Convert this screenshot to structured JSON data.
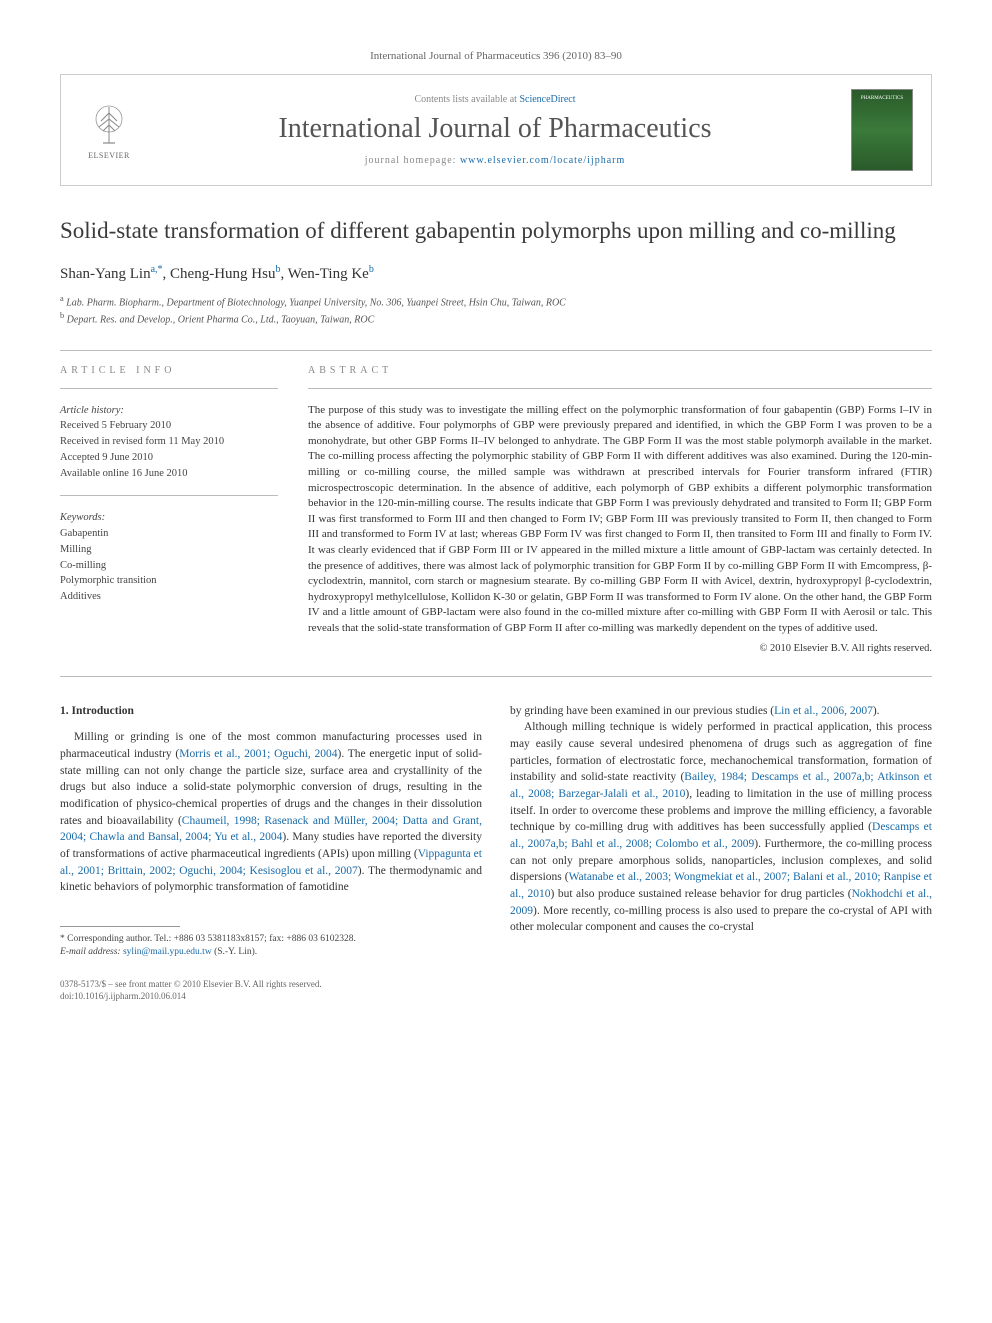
{
  "journal_ref": "International Journal of Pharmaceutics 396 (2010) 83–90",
  "header": {
    "contents_prefix": "Contents lists available at ",
    "contents_link": "ScienceDirect",
    "journal_title": "International Journal of Pharmaceutics",
    "homepage_prefix": "journal homepage: ",
    "homepage_link": "www.elsevier.com/locate/ijpharm",
    "elsevier_label": "ELSEVIER"
  },
  "title": "Solid-state transformation of different gabapentin polymorphs upon milling and co-milling",
  "authors_html": "Shan-Yang Lin<sup>a,*</sup>, Cheng-Hung Hsu<sup>b</sup>, Wen-Ting Ke<sup>b</sup>",
  "affiliations": [
    {
      "sup": "a",
      "text": "Lab. Pharm. Biopharm., Department of Biotechnology, Yuanpei University, No. 306, Yuanpei Street, Hsin Chu, Taiwan, ROC"
    },
    {
      "sup": "b",
      "text": "Depart. Res. and Develop., Orient Pharma Co., Ltd., Taoyuan, Taiwan, ROC"
    }
  ],
  "article_info": {
    "header": "ARTICLE INFO",
    "history_label": "Article history:",
    "history": [
      "Received 5 February 2010",
      "Received in revised form 11 May 2010",
      "Accepted 9 June 2010",
      "Available online 16 June 2010"
    ],
    "keywords_label": "Keywords:",
    "keywords": [
      "Gabapentin",
      "Milling",
      "Co-milling",
      "Polymorphic transition",
      "Additives"
    ]
  },
  "abstract": {
    "header": "ABSTRACT",
    "text": "The purpose of this study was to investigate the milling effect on the polymorphic transformation of four gabapentin (GBP) Forms I–IV in the absence of additive. Four polymorphs of GBP were previously prepared and identified, in which the GBP Form I was proven to be a monohydrate, but other GBP Forms II–IV belonged to anhydrate. The GBP Form II was the most stable polymorph available in the market. The co-milling process affecting the polymorphic stability of GBP Form II with different additives was also examined. During the 120-min-milling or co-milling course, the milled sample was withdrawn at prescribed intervals for Fourier transform infrared (FTIR) microspectroscopic determination. In the absence of additive, each polymorph of GBP exhibits a different polymorphic transformation behavior in the 120-min-milling course. The results indicate that GBP Form I was previously dehydrated and transited to Form II; GBP Form II was first transformed to Form III and then changed to Form IV; GBP Form III was previously transited to Form II, then changed to Form III and transformed to Form IV at last; whereas GBP Form IV was first changed to Form II, then transited to Form III and finally to Form IV. It was clearly evidenced that if GBP Form III or IV appeared in the milled mixture a little amount of GBP-lactam was certainly detected. In the presence of additives, there was almost lack of polymorphic transition for GBP Form II by co-milling GBP Form II with Emcompress, β-cyclodextrin, mannitol, corn starch or magnesium stearate. By co-milling GBP Form II with Avicel, dextrin, hydroxypropyl β-cyclodextrin, hydroxypropyl methylcellulose, Kollidon K-30 or gelatin, GBP Form II was transformed to Form IV alone. On the other hand, the GBP Form IV and a little amount of GBP-lactam were also found in the co-milled mixture after co-milling with GBP Form II with Aerosil or talc. This reveals that the solid-state transformation of GBP Form II after co-milling was markedly dependent on the types of additive used.",
    "copyright": "© 2010 Elsevier B.V. All rights reserved."
  },
  "body": {
    "section_number": "1.",
    "section_title": "Introduction",
    "left_para1_pre": "Milling or grinding is one of the most common manufacturing processes used in pharmaceutical industry (",
    "left_cite1": "Morris et al., 2001; Oguchi, 2004",
    "left_para1_mid": "). The energetic input of solid-state milling can not only change the particle size, surface area and crystallinity of the drugs but also induce a solid-state polymorphic conversion of drugs, resulting in the modification of physico-chemical properties of drugs and the changes in their dissolution rates and bioavailability (",
    "left_cite2": "Chaumeil, 1998; Rasenack and Müller, 2004; Datta and Grant, 2004; Chawla and Bansal, 2004; Yu et al., 2004",
    "left_para1_mid2": "). Many studies have reported the diversity of transformations of active pharmaceutical ingredients (APIs) upon milling (",
    "left_cite3": "Vippagunta et al., 2001; Brittain, 2002; Oguchi, 2004; Kesisoglou et al., 2007",
    "left_para1_end": "). The thermodynamic and kinetic behaviors of polymorphic transformation of famotidine",
    "right_para1_pre": "by grinding have been examined in our previous studies (",
    "right_cite1": "Lin et al., 2006, 2007",
    "right_para1_end": ").",
    "right_para2_pre": "Although milling technique is widely performed in practical application, this process may easily cause several undesired phenomena of drugs such as aggregation of fine particles, formation of electrostatic force, mechanochemical transformation, formation of instability and solid-state reactivity (",
    "right_cite2": "Bailey, 1984; Descamps et al., 2007a,b; Atkinson et al., 2008; Barzegar-Jalali et al., 2010",
    "right_para2_mid": "), leading to limitation in the use of milling process itself. In order to overcome these problems and improve the milling efficiency, a favorable technique by co-milling drug with additives has been successfully applied (",
    "right_cite3": "Descamps et al., 2007a,b; Bahl et al., 2008; Colombo et al., 2009",
    "right_para2_mid2": "). Furthermore, the co-milling process can not only prepare amorphous solids, nanoparticles, inclusion complexes, and solid dispersions (",
    "right_cite4": "Watanabe et al., 2003; Wongmekiat et al., 2007; Balani et al., 2010; Ranpise et al., 2010",
    "right_para2_mid3": ") but also produce sustained release behavior for drug particles (",
    "right_cite5": "Nokhodchi et al., 2009",
    "right_para2_end": "). More recently, co-milling process is also used to prepare the co-crystal of API with other molecular component and causes the co-crystal"
  },
  "footnotes": {
    "corr": "* Corresponding author. Tel.: +886 03 5381183x8157; fax: +886 03 6102328.",
    "email_label": "E-mail address:",
    "email": "sylin@mail.ypu.edu.tw",
    "email_suffix": "(S.-Y. Lin)."
  },
  "footer": {
    "line1": "0378-5173/$ – see front matter © 2010 Elsevier B.V. All rights reserved.",
    "line2": "doi:10.1016/j.ijpharm.2010.06.014"
  },
  "colors": {
    "link": "#1a6ba8",
    "text": "#333333",
    "muted": "#888888",
    "border": "#cccccc"
  }
}
